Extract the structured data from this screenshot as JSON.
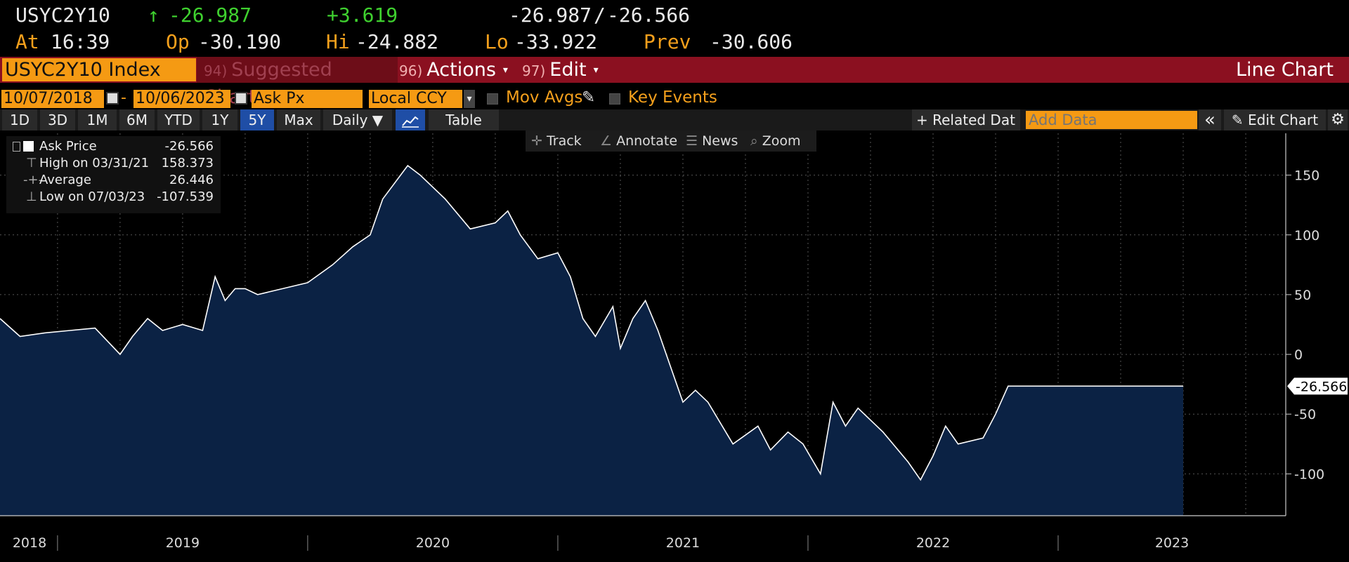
{
  "quote": {
    "ticker": "USYC2Y10",
    "arrow": "↑",
    "last": "-26.987",
    "change": "+3.619",
    "bid": "-26.987",
    "sep": "/",
    "ask": "-26.566",
    "at_label": "At",
    "time": "16:39",
    "op_label": "Op",
    "op": "-30.190",
    "hi_label": "Hi",
    "hi": "-24.882",
    "lo_label": "Lo",
    "lo": "-33.922",
    "prev_label": "Prev",
    "prev": "-30.606"
  },
  "function_bar": {
    "security": "USYC2Y10 Index",
    "suggested_num": "94)",
    "suggested": "Suggested Charts",
    "actions_num": "96)",
    "actions": "Actions",
    "edit_num": "97)",
    "edit": "Edit",
    "caret": "▾",
    "view": "Line Chart"
  },
  "fields": {
    "start_date": "10/07/2018",
    "dash": "-",
    "end_date": "10/06/2023",
    "field": "Ask Px",
    "currency": "Local CCY",
    "currency_caret": "▾",
    "mov_avgs": "Mov Avgs",
    "pencil": "✎",
    "key_events": "Key Events"
  },
  "periods": {
    "items": [
      "1D",
      "3D",
      "1M",
      "6M",
      "YTD",
      "1Y",
      "5Y",
      "Max"
    ],
    "active": "5Y",
    "frequency": "Daily ▼",
    "table": "Table",
    "related": "+ Related Dat",
    "add_data_placeholder": "Add Data",
    "collapse": "«",
    "edit_chart": "✎ Edit Chart",
    "gear": "⚙"
  },
  "toolbar": {
    "track": "Track",
    "annotate": "Annotate",
    "news": "News",
    "zoom": "Zoom"
  },
  "legend": {
    "ask_label": "Ask Price",
    "ask_value": "-26.566",
    "high_label": "High on 03/31/21",
    "high_value": "158.373",
    "avg_label": "Average",
    "avg_value": "26.446",
    "low_label": "Low on 07/03/23",
    "low_value": "-107.539"
  },
  "colors": {
    "line": "#ffffff",
    "area": "#0b2244",
    "orange": "#f59a13",
    "green": "#3fd12f",
    "red_bar": "#8b1020"
  },
  "chart_data": {
    "type": "area",
    "title": "",
    "xlabel": "",
    "ylabel": "",
    "ylim": [
      -135,
      185
    ],
    "xlim": [
      2018.77,
      2023.91
    ],
    "yticks": [
      150,
      100,
      50,
      0,
      -50,
      -100
    ],
    "year_labels": [
      {
        "label": "2018",
        "x": 2018.77
      },
      {
        "label": "2019",
        "x": 2019.0
      },
      {
        "label": "2020",
        "x": 2020.0
      },
      {
        "label": "2021",
        "x": 2021.0
      },
      {
        "label": "2022",
        "x": 2022.0
      },
      {
        "label": "2023",
        "x": 2023.0
      }
    ],
    "last_value_label": "-26.566",
    "grid": true,
    "series": [
      {
        "x": [
          2018.77,
          2018.85,
          2018.95,
          2019.05,
          2019.15,
          2019.25,
          2019.3,
          2019.36,
          2019.42,
          2019.5,
          2019.58,
          2019.63,
          2019.67,
          2019.71,
          2019.75,
          2019.8,
          2019.9,
          2020.0,
          2020.1,
          2020.18,
          2020.25,
          2020.3,
          2020.4,
          2020.45,
          2020.55,
          2020.65,
          2020.75,
          2020.8,
          2020.85,
          2020.92,
          2021.0,
          2021.05,
          2021.1,
          2021.15,
          2021.22,
          2021.25,
          2021.3,
          2021.35,
          2021.4,
          2021.45,
          2021.5,
          2021.55,
          2021.6,
          2021.7,
          2021.8,
          2021.85,
          2021.92,
          2021.98,
          2022.05,
          2022.1,
          2022.15,
          2022.2,
          2022.3,
          2022.4,
          2022.45,
          2022.5,
          2022.55,
          2022.6,
          2022.7,
          2022.75,
          2022.8,
          2022.85,
          2022.9,
          2022.95,
          2023.0,
          2023.03,
          2023.05,
          2023.1,
          2023.15,
          2023.2,
          2023.25,
          2023.3,
          2023.35,
          2023.38,
          2023.42,
          2023.5
        ],
        "y": [
          30,
          15,
          18,
          20,
          22,
          0,
          15,
          30,
          20,
          25,
          20,
          65,
          45,
          55,
          55,
          50,
          55,
          60,
          75,
          90,
          100,
          130,
          158,
          150,
          130,
          105,
          110,
          120,
          100,
          80,
          85,
          65,
          30,
          15,
          40,
          5,
          30,
          45,
          20,
          -10,
          -40,
          -30,
          -40,
          -75,
          -60,
          -80,
          -65,
          -75,
          -100,
          -40,
          -60,
          -45,
          -65,
          -90,
          -105,
          -85,
          -60,
          -75,
          -70,
          -50,
          -26.566,
          -26.566,
          -26.566,
          -26.566,
          -26.566,
          -26.566,
          -26.566,
          -26.566,
          -26.566,
          -26.566,
          -26.566,
          -26.566,
          -26.566,
          -26.566,
          -26.566,
          -26.566
        ]
      }
    ]
  }
}
